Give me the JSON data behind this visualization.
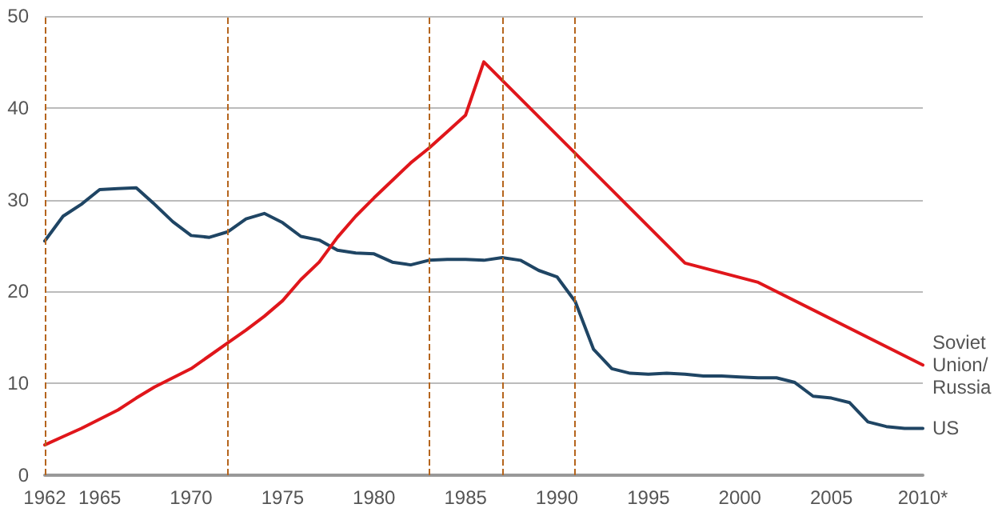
{
  "chart_data": {
    "type": "line",
    "xlim": [
      1962,
      2010
    ],
    "xticks": [
      1962,
      1965,
      1970,
      1975,
      1980,
      1985,
      1990,
      1995,
      2000,
      2005,
      {
        "value": 2010,
        "label": "2010*"
      }
    ],
    "ylim": [
      0,
      50
    ],
    "yticks": [
      0,
      10,
      20,
      30,
      40,
      50
    ],
    "grid": "y",
    "legend": false,
    "marker": "none",
    "line_style": "solid",
    "series": [
      {
        "name": "US",
        "color": "#1f4564",
        "x": [
          1962,
          1963,
          1964,
          1965,
          1966,
          1967,
          1968,
          1969,
          1970,
          1971,
          1972,
          1973,
          1974,
          1975,
          1976,
          1977,
          1978,
          1979,
          1980,
          1981,
          1982,
          1983,
          1984,
          1985,
          1986,
          1987,
          1988,
          1989,
          1990,
          1991,
          1992,
          1993,
          1994,
          1995,
          1996,
          1997,
          1998,
          1999,
          2000,
          2001,
          2002,
          2003,
          2004,
          2005,
          2006,
          2007,
          2008,
          2009,
          2010
        ],
        "values": [
          25.5,
          28.2,
          29.5,
          31.1,
          31.2,
          31.3,
          29.5,
          27.6,
          26.1,
          25.9,
          26.5,
          27.9,
          28.5,
          27.5,
          26.0,
          25.6,
          24.5,
          24.2,
          24.1,
          23.2,
          22.9,
          23.4,
          23.5,
          23.5,
          23.4,
          23.7,
          23.4,
          22.3,
          21.6,
          18.9,
          13.7,
          11.6,
          11.1,
          11.0,
          11.1,
          11.0,
          10.8,
          10.8,
          10.7,
          10.6,
          10.6,
          10.1,
          8.6,
          8.4,
          7.9,
          5.8,
          5.3,
          5.1,
          5.1
        ]
      },
      {
        "name": "Soviet Union/ Russia",
        "color": "#e0161b",
        "x": [
          1962,
          1963,
          1964,
          1965,
          1966,
          1967,
          1968,
          1969,
          1970,
          1971,
          1972,
          1973,
          1974,
          1975,
          1976,
          1977,
          1978,
          1979,
          1980,
          1981,
          1982,
          1983,
          1984,
          1985,
          1986,
          1997,
          2001,
          2010
        ],
        "values": [
          3.3,
          4.2,
          5.1,
          6.1,
          7.1,
          8.4,
          9.6,
          10.6,
          11.6,
          13.0,
          14.4,
          15.8,
          17.3,
          19.0,
          21.3,
          23.2,
          25.9,
          28.2,
          30.2,
          32.1,
          34.0,
          35.6,
          37.4,
          39.2,
          45.0,
          23.1,
          21.0,
          12.0
        ]
      }
    ],
    "ref_lines": [
      {
        "axis": "x",
        "value": 1962,
        "color": "#b5651d",
        "line_style": "dashed"
      },
      {
        "axis": "x",
        "value": 1972,
        "color": "#b5651d",
        "line_style": "dashed"
      },
      {
        "axis": "x",
        "value": 1983,
        "color": "#b5651d",
        "line_style": "dashed"
      },
      {
        "axis": "x",
        "value": 1987,
        "color": "#b5651d",
        "line_style": "dashed"
      },
      {
        "axis": "x",
        "value": 1991,
        "color": "#b5651d",
        "line_style": "dashed"
      }
    ]
  }
}
